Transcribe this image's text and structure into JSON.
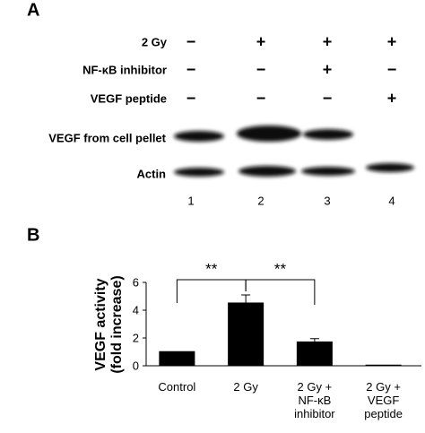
{
  "panel_a": {
    "label": "A",
    "conditions": [
      {
        "name": "2 Gy",
        "signs": [
          "−",
          "+",
          "+",
          "+"
        ]
      },
      {
        "name": "NF-κB inhibitor",
        "signs": [
          "−",
          "−",
          "+",
          "−"
        ]
      },
      {
        "name": "VEGF peptide",
        "signs": [
          "−",
          "−",
          "−",
          "+"
        ]
      }
    ],
    "blots": [
      "VEGF from cell pellet",
      "Actin"
    ],
    "lanes": [
      "1",
      "2",
      "3",
      "4"
    ]
  },
  "chart_data": {
    "type": "bar",
    "label": "B",
    "ylabel": "VEGF activity\n(fold increase)",
    "categories": [
      "Control",
      "2 Gy",
      "2 Gy +\nNF-κB\ninhibitor",
      "2 Gy +\nVEGF\npeptide"
    ],
    "values": [
      1.05,
      4.55,
      1.75,
      0.08
    ],
    "errors": [
      null,
      0.55,
      0.2,
      null
    ],
    "color": "#000000",
    "ylim": [
      0,
      6
    ],
    "yticks": [
      0,
      2,
      4,
      6
    ],
    "annotations": [
      {
        "text": "**",
        "between": [
          0,
          1
        ]
      },
      {
        "text": "**",
        "between": [
          1,
          2
        ]
      }
    ]
  }
}
